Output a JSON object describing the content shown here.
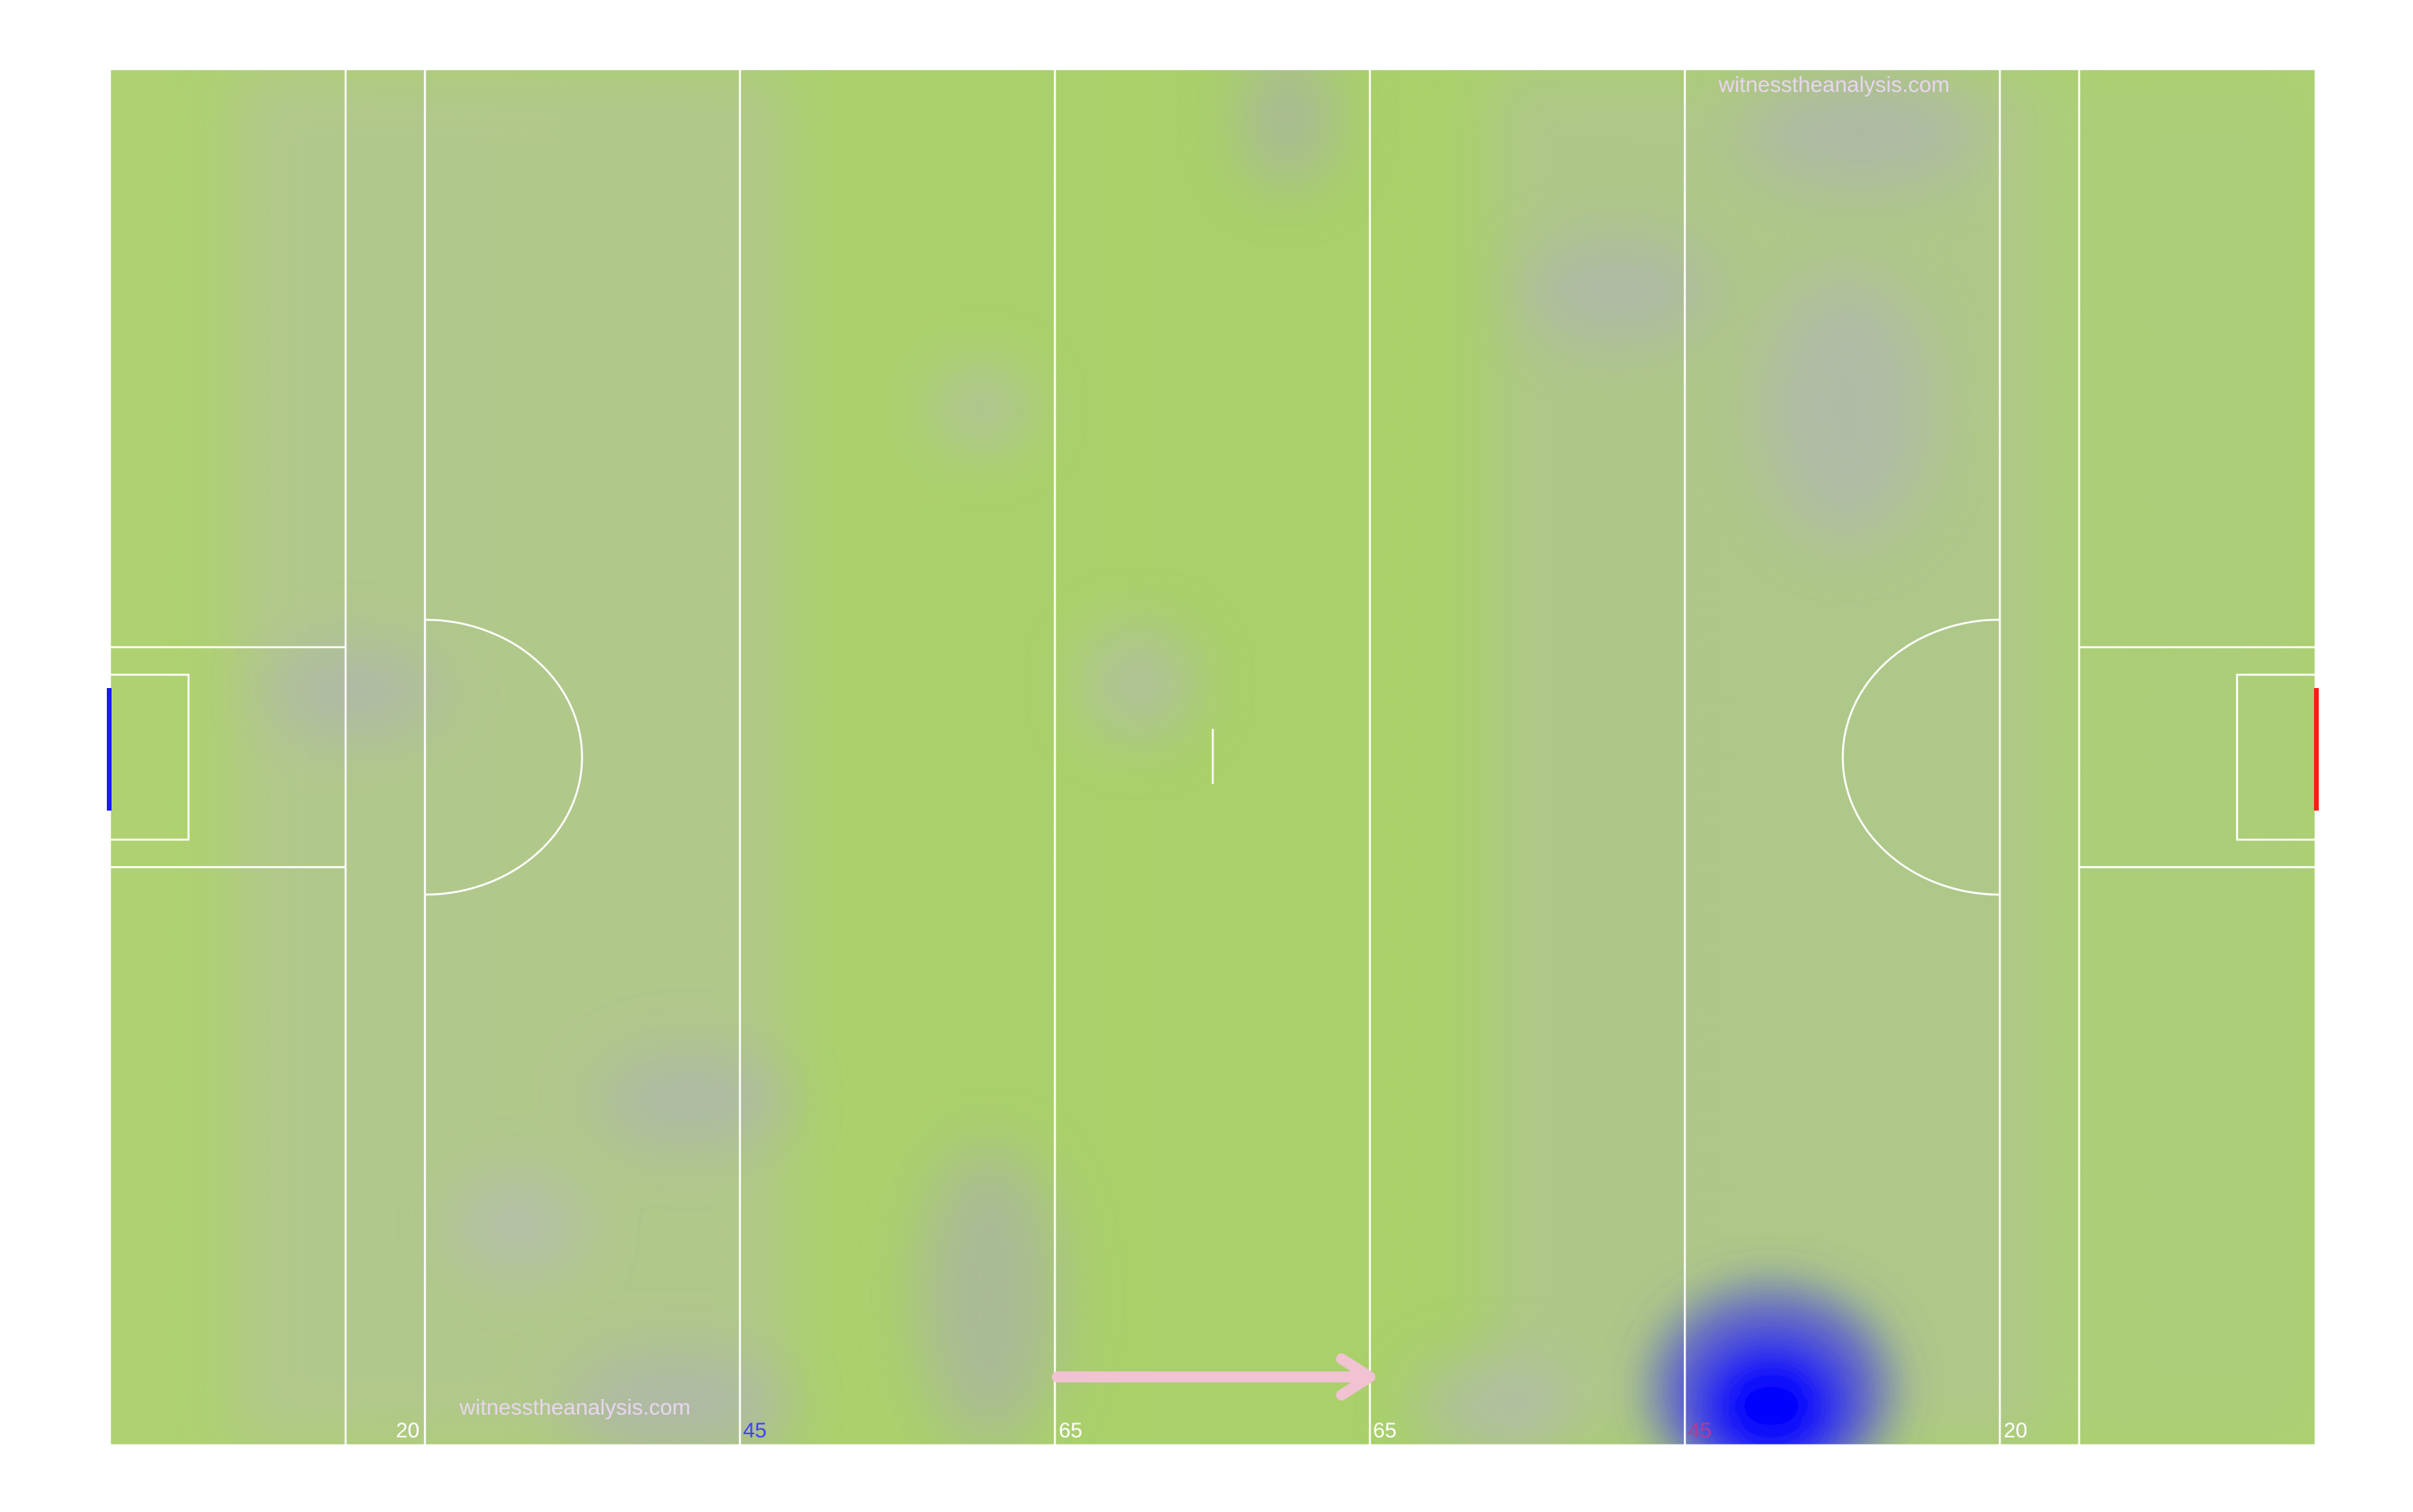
{
  "watermarks": {
    "top_right": "witnesstheanalysis.com",
    "bottom_left": "witnesstheanalysis.com"
  },
  "line_labels": {
    "left_20": "20",
    "left_45": "45",
    "left_65": "65",
    "right_65": "65",
    "right_45": "45",
    "right_20": "20"
  },
  "colors": {
    "grass": "#abd16d",
    "line": "#ffffff",
    "left_goal": "#1a1aff",
    "right_goal": "#ff1a1a",
    "left_45_label": "#4040ff",
    "right_45_label": "#b03c96",
    "direction_arrow": "#f0c2d2",
    "heat_faint": "#a9a9b8",
    "heat_hot": "#0000ff",
    "watermark": "#e8d6ee"
  },
  "attack_direction": "right"
}
